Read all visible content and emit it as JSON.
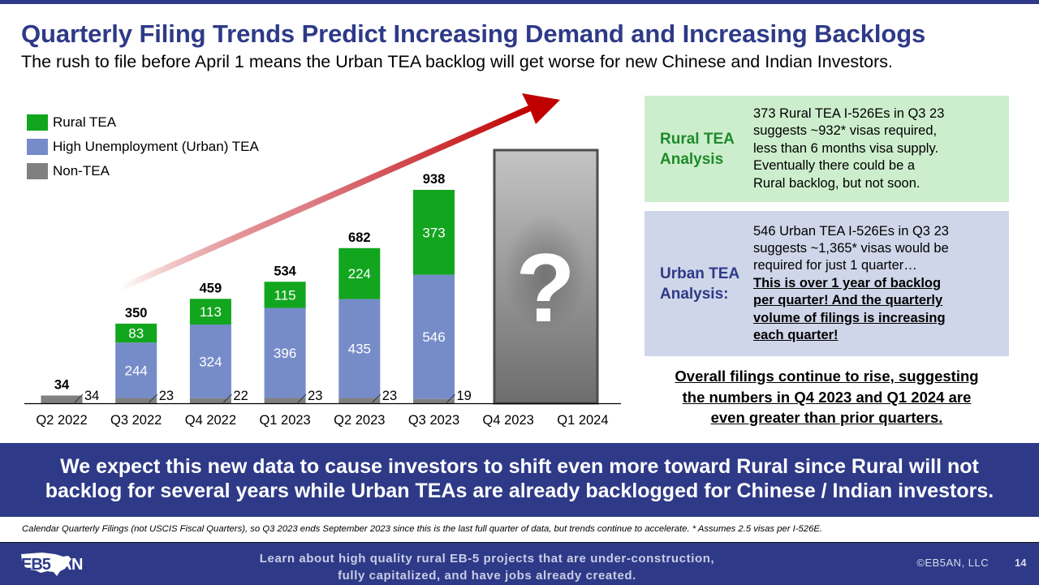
{
  "header": {
    "title": "Quarterly Filing Trends Predict Increasing Demand and Increasing Backlogs",
    "subtitle": "The rush to file before April 1 means the Urban TEA backlog will get worse for new Chinese and Indian Investors."
  },
  "colors": {
    "brand": "#2e3a87",
    "rural": "#12a51e",
    "urban": "#768cc8",
    "non_tea": "#808080",
    "arrow": "#c00000"
  },
  "chart_data": {
    "type": "bar",
    "stacked": true,
    "categories": [
      "Q2 2022",
      "Q3 2022",
      "Q4 2022",
      "Q1 2023",
      "Q2 2023",
      "Q3 2023",
      "Q4 2023",
      "Q1 2024"
    ],
    "series": [
      {
        "name": "Non-TEA",
        "color": "#808080",
        "values": [
          34,
          23,
          22,
          23,
          23,
          19,
          null,
          null
        ]
      },
      {
        "name": "High Unemployment (Urban) TEA",
        "color": "#768cc8",
        "values": [
          0,
          244,
          324,
          396,
          435,
          546,
          null,
          null
        ]
      },
      {
        "name": "Rural TEA",
        "color": "#12a51e",
        "values": [
          0,
          83,
          113,
          115,
          224,
          373,
          null,
          null
        ]
      }
    ],
    "totals": [
      34,
      350,
      459,
      534,
      682,
      938,
      null,
      null
    ],
    "value_labels": {
      "non_tea": [
        "34",
        "23",
        "22",
        "23",
        "23",
        "19"
      ],
      "urban": [
        "",
        "244",
        "324",
        "396",
        "435",
        "546"
      ],
      "rural": [
        "",
        "83",
        "113",
        "115",
        "224",
        "373"
      ],
      "totals": [
        "34",
        "350",
        "459",
        "534",
        "682",
        "938"
      ]
    },
    "unknown_marker": "?",
    "legend": [
      "Rural TEA",
      "High Unemployment (Urban) TEA",
      "Non-TEA"
    ],
    "legend_position": "top-left",
    "title": "",
    "xlabel": "",
    "ylabel": "",
    "ylim": [
      0,
      1000
    ],
    "grid": false,
    "annotation": "trend arrow rising"
  },
  "panels": {
    "rural": {
      "heading_lines": [
        "Rural TEA",
        "Analysis"
      ],
      "body_lines": [
        "373 Rural TEA I-526Es in Q3 23",
        "suggests ~932* visas required,",
        "less than 6 months visa supply.",
        "Eventually there could be a",
        "Rural backlog, but not soon."
      ]
    },
    "urban": {
      "heading_lines": [
        "Urban TEA",
        "Analysis:"
      ],
      "body_lines": [
        "546 Urban TEA I-526Es in Q3 23",
        "suggests ~1,365* visas would be",
        "required for just 1 quarter…"
      ],
      "emphasis_lines": [
        "This is over 1 year of backlog",
        "per quarter! And the quarterly",
        "volume of filings is increasing",
        "each quarter!"
      ]
    }
  },
  "conclusion_lines": [
    "Overall filings continue to rise, suggesting",
    "the numbers in Q4 2023 and Q1 2024 are",
    "even greater than prior quarters."
  ],
  "banner_lines": [
    "We expect this new data to cause investors to shift even more toward Rural since Rural will not",
    "backlog for several years while Urban TEAs are already backlogged for Chinese / Indian investors."
  ],
  "footnote": "Calendar Quarterly Filings (not USCIS Fiscal Quarters), so Q3 2023 ends September 2023 since this is the last full quarter of data, but trends continue to accelerate. * Assumes 2.5 visas per I-526E.",
  "footer": {
    "logo_text_left": "EB5",
    "logo_text_right": "AN",
    "cta_lines": [
      "Learn about high quality rural EB-5 projects that are under-construction,",
      "fully capitalized, and have jobs already created."
    ],
    "copyright": "©EB5AN, LLC",
    "page_number": "14"
  }
}
